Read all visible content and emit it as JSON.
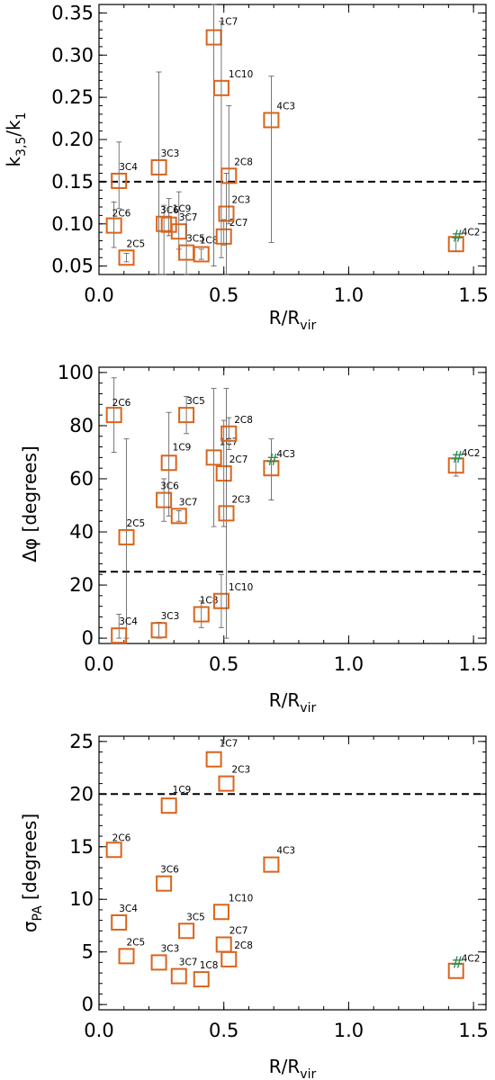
{
  "colors": {
    "marker": "#d9641c",
    "hash": "#2e8b57"
  },
  "chart_data": [
    {
      "type": "scatter",
      "xlabel": "R/R",
      "xlabel_sub": "vir",
      "ylabel": "k",
      "ylabel_sub": "3,5",
      "ylabel_suffix": "/k",
      "ylabel_suffix_sub": "1",
      "xlim": [
        0.0,
        1.55
      ],
      "ylim": [
        0.04,
        0.36
      ],
      "xticks": [
        0.0,
        0.5,
        1.0,
        1.5
      ],
      "xtick_labels": [
        "0.0",
        "0.5",
        "1.0",
        "1.5"
      ],
      "yticks": [
        0.05,
        0.1,
        0.15,
        0.2,
        0.25,
        0.3,
        0.35
      ],
      "ytick_labels": [
        "0.05",
        "0.10",
        "0.15",
        "0.20",
        "0.25",
        "0.30",
        "0.35"
      ],
      "hline": 0.15,
      "points": [
        {
          "label": "2C6",
          "x": 0.06,
          "y": 0.098,
          "err_lo": 0.072,
          "err_hi": 0.126
        },
        {
          "label": "2C5",
          "x": 0.11,
          "y": 0.06,
          "err_lo": 0.055,
          "err_hi": 0.065
        },
        {
          "label": "3C4",
          "x": 0.08,
          "y": 0.151,
          "err_lo": 0.118,
          "err_hi": 0.197
        },
        {
          "label": "3C3",
          "x": 0.24,
          "y": 0.167,
          "err_lo": 0.04,
          "err_hi": 0.28
        },
        {
          "label": "3C6",
          "x": 0.26,
          "y": 0.1,
          "err_lo": 0.04,
          "err_hi": 0.122
        },
        {
          "label": "1C9",
          "x": 0.28,
          "y": 0.099,
          "err_lo": 0.086,
          "err_hi": 0.13
        },
        {
          "label": "3C7",
          "x": 0.32,
          "y": 0.091,
          "err_lo": 0.07,
          "err_hi": 0.138
        },
        {
          "label": "3C5",
          "x": 0.35,
          "y": 0.066,
          "err_lo": 0.04,
          "err_hi": 0.11
        },
        {
          "label": "1C8",
          "x": 0.41,
          "y": 0.064,
          "err_lo": 0.058,
          "err_hi": 0.07
        },
        {
          "label": "1C7",
          "x": 0.46,
          "y": 0.321,
          "err_lo": 0.05,
          "err_hi": 0.36
        },
        {
          "label": "1C10",
          "x": 0.49,
          "y": 0.261,
          "err_lo": 0.06,
          "err_hi": 0.34
        },
        {
          "label": "2C7",
          "x": 0.5,
          "y": 0.085,
          "err_lo": 0.075,
          "err_hi": 0.105
        },
        {
          "label": "2C3",
          "x": 0.51,
          "y": 0.112,
          "err_lo": 0.04,
          "err_hi": 0.16
        },
        {
          "label": "2C8",
          "x": 0.52,
          "y": 0.157,
          "err_lo": 0.1,
          "err_hi": 0.24
        },
        {
          "label": "4C3",
          "x": 0.69,
          "y": 0.223,
          "err_lo": 0.078,
          "err_hi": 0.275
        },
        {
          "label": "4C2",
          "x": 1.43,
          "y": 0.076,
          "err_lo": 0.068,
          "err_hi": 0.085,
          "hash": true
        }
      ]
    },
    {
      "type": "scatter",
      "xlabel": "R/R",
      "xlabel_sub": "vir",
      "ylabel": "Δφ [degrees]",
      "xlim": [
        0.0,
        1.55
      ],
      "ylim": [
        -2,
        102
      ],
      "xticks": [
        0.0,
        0.5,
        1.0,
        1.5
      ],
      "xtick_labels": [
        "0.0",
        "0.5",
        "1.0",
        "1.5"
      ],
      "yticks": [
        0,
        20,
        40,
        60,
        80,
        100
      ],
      "ytick_labels": [
        "0",
        "20",
        "40",
        "60",
        "80",
        "100"
      ],
      "hline": 25,
      "points": [
        {
          "label": "2C6",
          "x": 0.06,
          "y": 84,
          "err_lo": 70,
          "err_hi": 98
        },
        {
          "label": "2C5",
          "x": 0.11,
          "y": 38,
          "err_lo": 0,
          "err_hi": 75
        },
        {
          "label": "3C4",
          "x": 0.08,
          "y": 1,
          "err_lo": 0,
          "err_hi": 9
        },
        {
          "label": "3C3",
          "x": 0.24,
          "y": 3,
          "err_lo": 0,
          "err_hi": 6
        },
        {
          "label": "3C6",
          "x": 0.26,
          "y": 52,
          "err_lo": 44,
          "err_hi": 60
        },
        {
          "label": "1C9",
          "x": 0.28,
          "y": 66,
          "err_lo": 46,
          "err_hi": 85
        },
        {
          "label": "3C7",
          "x": 0.32,
          "y": 46,
          "err_lo": 44,
          "err_hi": 48
        },
        {
          "label": "3C5",
          "x": 0.35,
          "y": 84,
          "err_lo": 77,
          "err_hi": 91
        },
        {
          "label": "1C8",
          "x": 0.41,
          "y": 9,
          "err_lo": 4,
          "err_hi": 14
        },
        {
          "label": "1C7",
          "x": 0.46,
          "y": 68,
          "err_lo": 42,
          "err_hi": 94
        },
        {
          "label": "1C10",
          "x": 0.49,
          "y": 14,
          "err_lo": 4,
          "err_hi": 24
        },
        {
          "label": "2C7",
          "x": 0.5,
          "y": 62,
          "err_lo": 42,
          "err_hi": 82
        },
        {
          "label": "2C3",
          "x": 0.51,
          "y": 47,
          "err_lo": 0,
          "err_hi": 94
        },
        {
          "label": "2C8",
          "x": 0.52,
          "y": 77,
          "err_lo": 71,
          "err_hi": 83
        },
        {
          "label": "4C3",
          "x": 0.69,
          "y": 64,
          "err_lo": 52,
          "err_hi": 75,
          "hash": true
        },
        {
          "label": "4C2",
          "x": 1.43,
          "y": 65,
          "err_lo": 61,
          "err_hi": 69,
          "hash": true
        }
      ]
    },
    {
      "type": "scatter",
      "xlabel": "R/R",
      "xlabel_sub": "vir",
      "ylabel": "σ",
      "ylabel_sub": "PA",
      "ylabel_suffix": " [degrees]",
      "xlim": [
        0.0,
        1.55
      ],
      "ylim": [
        -0.5,
        25.5
      ],
      "xticks": [
        0.0,
        0.5,
        1.0,
        1.5
      ],
      "xtick_labels": [
        "0.0",
        "0.5",
        "1.0",
        "1.5"
      ],
      "yticks": [
        0,
        5,
        10,
        15,
        20,
        25
      ],
      "ytick_labels": [
        "0",
        "5",
        "10",
        "15",
        "20",
        "25"
      ],
      "hline": 20,
      "points": [
        {
          "label": "2C6",
          "x": 0.06,
          "y": 14.7
        },
        {
          "label": "2C5",
          "x": 0.11,
          "y": 4.6
        },
        {
          "label": "3C4",
          "x": 0.08,
          "y": 7.8
        },
        {
          "label": "3C3",
          "x": 0.24,
          "y": 4.0
        },
        {
          "label": "3C6",
          "x": 0.26,
          "y": 11.5
        },
        {
          "label": "1C9",
          "x": 0.28,
          "y": 18.9
        },
        {
          "label": "3C7",
          "x": 0.32,
          "y": 2.7
        },
        {
          "label": "3C5",
          "x": 0.35,
          "y": 7.0
        },
        {
          "label": "1C8",
          "x": 0.41,
          "y": 2.4
        },
        {
          "label": "1C7",
          "x": 0.46,
          "y": 23.3
        },
        {
          "label": "1C10",
          "x": 0.49,
          "y": 8.8
        },
        {
          "label": "2C7",
          "x": 0.5,
          "y": 5.7
        },
        {
          "label": "2C3",
          "x": 0.51,
          "y": 21.0
        },
        {
          "label": "2C8",
          "x": 0.52,
          "y": 4.3
        },
        {
          "label": "4C3",
          "x": 0.69,
          "y": 13.3
        },
        {
          "label": "4C2",
          "x": 1.43,
          "y": 3.2,
          "hash": true
        }
      ]
    }
  ]
}
